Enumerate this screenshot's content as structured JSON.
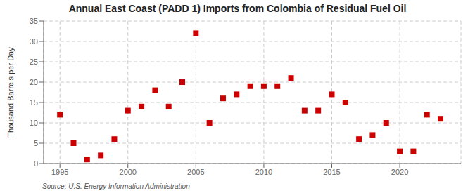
{
  "chart_data": {
    "type": "scatter",
    "title": "Annual East Coast (PADD 1) Imports from Colombia of Residual Fuel Oil",
    "ylabel": "Thousand Barrels per Day",
    "source": "Source: U.S. Energy Information Administration",
    "x": [
      1995,
      1996,
      1997,
      1998,
      1999,
      2000,
      2001,
      2002,
      2003,
      2004,
      2005,
      2006,
      2007,
      2008,
      2009,
      2010,
      2011,
      2012,
      2013,
      2014,
      2015,
      2016,
      2017,
      2018,
      2019,
      2020,
      2021,
      2022,
      2023
    ],
    "values": [
      12,
      5,
      1,
      2,
      6,
      13,
      14,
      18,
      14,
      20,
      32,
      10,
      16,
      17,
      19,
      19,
      19,
      21,
      13,
      13,
      17,
      15,
      6,
      7,
      10,
      3,
      3,
      12,
      11
    ],
    "color": "#cc0000",
    "marker": "square",
    "xlim": [
      1993.8,
      2024.5
    ],
    "ylim": [
      0,
      35
    ],
    "xticks": [
      1995,
      2000,
      2005,
      2010,
      2015,
      2020
    ],
    "yticks": [
      0,
      5,
      10,
      15,
      20,
      25,
      30,
      35
    ],
    "grid": true
  }
}
